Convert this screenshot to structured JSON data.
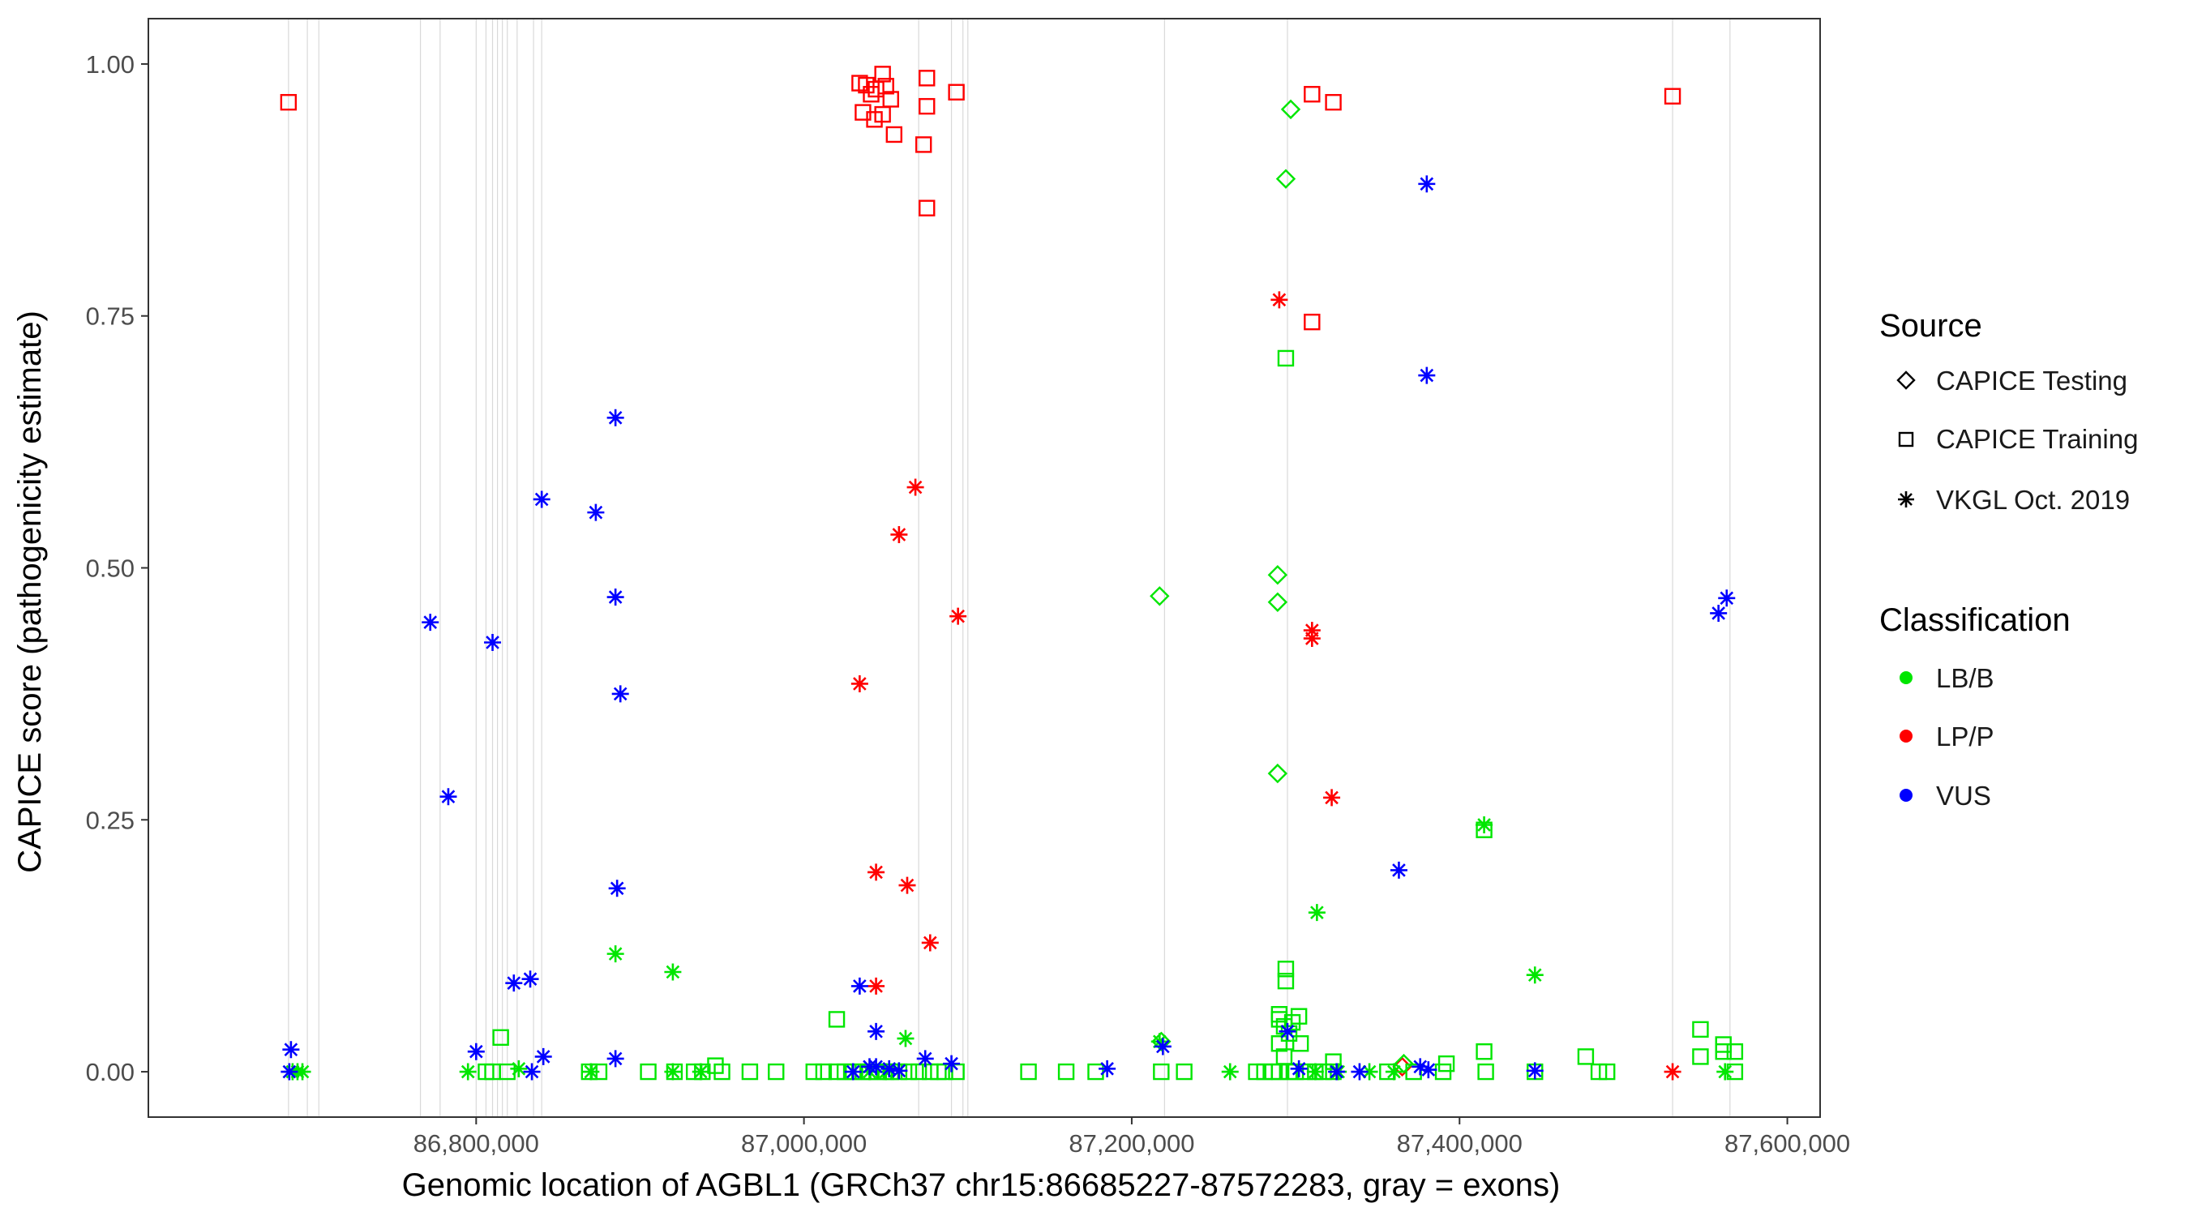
{
  "chart_data": {
    "type": "scatter",
    "title": "",
    "xlabel": "Genomic location of AGBL1 (GRCh37 chr15:86685227-87572283, gray = exons)",
    "ylabel": "CAPICE score (pathogenicity estimate)",
    "xlim": [
      86600000,
      87620000
    ],
    "ylim": [
      -0.045,
      1.045
    ],
    "x_ticks": [
      86800000,
      87000000,
      87200000,
      87400000,
      87600000
    ],
    "x_tick_labels": [
      "86,800,000",
      "87,000,000",
      "87,200,000",
      "87,400,000",
      "87,600,000"
    ],
    "y_ticks": [
      0,
      0.25,
      0.5,
      0.75,
      1.0
    ],
    "y_tick_labels": [
      "0.00",
      "0.25",
      "0.50",
      "0.75",
      "1.00"
    ],
    "exon_positions": [
      86685500,
      86697000,
      86704000,
      86766000,
      86778000,
      86800000,
      86806000,
      86810000,
      86813000,
      86816000,
      86819000,
      86825000,
      86835000,
      86840000,
      87070000,
      87090000,
      87097000,
      87100000,
      87220000,
      87295000,
      87530000,
      87565000
    ],
    "legend": {
      "source_title": "Source",
      "sources": [
        {
          "label": "CAPICE Testing",
          "shape": "diamond"
        },
        {
          "label": "CAPICE Training",
          "shape": "square"
        },
        {
          "label": "VKGL Oct. 2019",
          "shape": "asterisk"
        }
      ],
      "class_title": "Classification",
      "classes": [
        {
          "label": "LB/B",
          "color": "#00e600"
        },
        {
          "label": "LP/P",
          "color": "#ff0000"
        },
        {
          "label": "VUS",
          "color": "#0000ff"
        }
      ]
    },
    "series": [
      {
        "name": "LP/P CAPICE Training",
        "cls": "LP/P",
        "shape": "square",
        "points": [
          [
            86685500,
            0.962
          ],
          [
            87034000,
            0.981
          ],
          [
            87038000,
            0.979
          ],
          [
            87041000,
            0.97
          ],
          [
            87044000,
            0.975
          ],
          [
            87048000,
            0.99
          ],
          [
            87050000,
            0.978
          ],
          [
            87053000,
            0.965
          ],
          [
            87036000,
            0.952
          ],
          [
            87043000,
            0.945
          ],
          [
            87048000,
            0.95
          ],
          [
            87055000,
            0.93
          ],
          [
            87075000,
            0.986
          ],
          [
            87075000,
            0.958
          ],
          [
            87073000,
            0.92
          ],
          [
            87075000,
            0.857
          ],
          [
            87093000,
            0.972
          ],
          [
            87310000,
            0.97
          ],
          [
            87323000,
            0.962
          ],
          [
            87310000,
            0.744
          ],
          [
            87530000,
            0.968
          ]
        ]
      },
      {
        "name": "LP/P VKGL Oct. 2019",
        "cls": "LP/P",
        "shape": "asterisk",
        "points": [
          [
            87290000,
            0.766
          ],
          [
            87068000,
            0.58
          ],
          [
            87058000,
            0.533
          ],
          [
            87094000,
            0.452
          ],
          [
            87310000,
            0.438
          ],
          [
            87310000,
            0.43
          ],
          [
            87034000,
            0.385
          ],
          [
            87322000,
            0.272
          ],
          [
            87044000,
            0.198
          ],
          [
            87063000,
            0.185
          ],
          [
            87077000,
            0.128
          ],
          [
            87044000,
            0.085
          ],
          [
            87530000,
            0.0
          ]
        ]
      },
      {
        "name": "LP/P CAPICE Testing",
        "cls": "LP/P",
        "shape": "diamond",
        "points": [
          [
            87365000,
            0.005
          ]
        ]
      },
      {
        "name": "LB/B CAPICE Testing",
        "cls": "LB/B",
        "shape": "diamond",
        "points": [
          [
            87297000,
            0.955
          ],
          [
            87294000,
            0.886
          ],
          [
            87217000,
            0.472
          ],
          [
            87289000,
            0.493
          ],
          [
            87289000,
            0.466
          ],
          [
            87289000,
            0.296
          ],
          [
            87218000,
            0.03
          ],
          [
            87366000,
            0.008
          ]
        ]
      },
      {
        "name": "LB/B CAPICE Training",
        "cls": "LB/B",
        "shape": "square",
        "points": [
          [
            87294000,
            0.708
          ],
          [
            87415000,
            0.24
          ],
          [
            87294000,
            0.102
          ],
          [
            87294000,
            0.09
          ],
          [
            87290000,
            0.057
          ],
          [
            87290000,
            0.052
          ],
          [
            87293000,
            0.045
          ],
          [
            87298000,
            0.049
          ],
          [
            87302000,
            0.055
          ],
          [
            87296000,
            0.038
          ],
          [
            87290000,
            0.028
          ],
          [
            87303000,
            0.028
          ],
          [
            87293000,
            0.015
          ],
          [
            87415000,
            0.02
          ],
          [
            87477000,
            0.015
          ],
          [
            87020000,
            0.052
          ],
          [
            86815000,
            0.034
          ],
          [
            87547000,
            0.042
          ],
          [
            87561000,
            0.027
          ],
          [
            87561000,
            0.02
          ],
          [
            87568000,
            0.02
          ],
          [
            87547000,
            0.015
          ],
          [
            87392000,
            0.008
          ],
          [
            87323000,
            0.01
          ],
          [
            86946000,
            0.006
          ],
          [
            86869000,
            0.0
          ],
          [
            86875000,
            0.0
          ],
          [
            86905000,
            0.0
          ],
          [
            86921000,
            0.0
          ],
          [
            86933000,
            0.0
          ],
          [
            86938000,
            0.0
          ],
          [
            86950000,
            0.0
          ],
          [
            86967000,
            0.0
          ],
          [
            86983000,
            0.0
          ],
          [
            87006000,
            0.0
          ],
          [
            87012000,
            0.0
          ],
          [
            87020000,
            0.0
          ],
          [
            87025000,
            0.0
          ],
          [
            87030000,
            0.0
          ],
          [
            87036000,
            0.0
          ],
          [
            87040000,
            0.0
          ],
          [
            87045000,
            0.0
          ],
          [
            87050000,
            0.0
          ],
          [
            87053000,
            0.0
          ],
          [
            87058000,
            0.0
          ],
          [
            87064000,
            0.0
          ],
          [
            87070000,
            0.0
          ],
          [
            87077000,
            0.0
          ],
          [
            87082000,
            0.0
          ],
          [
            87086000,
            0.0
          ],
          [
            87093000,
            0.0
          ],
          [
            87137000,
            0.0
          ],
          [
            87160000,
            0.0
          ],
          [
            87178000,
            0.0
          ],
          [
            87218000,
            0.0
          ],
          [
            87232000,
            0.0
          ],
          [
            87276000,
            0.0
          ],
          [
            87281000,
            0.0
          ],
          [
            87286000,
            0.0
          ],
          [
            87290000,
            0.0
          ],
          [
            87296000,
            0.0
          ],
          [
            87300000,
            0.0
          ],
          [
            87306000,
            0.0
          ],
          [
            87312000,
            0.0
          ],
          [
            87317000,
            0.0
          ],
          [
            87323000,
            0.0
          ],
          [
            87356000,
            0.0
          ],
          [
            87372000,
            0.0
          ],
          [
            87390000,
            0.0
          ],
          [
            87416000,
            0.0
          ],
          [
            87446000,
            0.0
          ],
          [
            87485000,
            0.0
          ],
          [
            87490000,
            0.0
          ],
          [
            87568000,
            0.0
          ],
          [
            86806000,
            0.0
          ],
          [
            86810000,
            0.0
          ],
          [
            86819000,
            0.0
          ]
        ]
      },
      {
        "name": "LB/B VKGL Oct. 2019",
        "cls": "LB/B",
        "shape": "asterisk",
        "points": [
          [
            87415000,
            0.245
          ],
          [
            87313000,
            0.158
          ],
          [
            86885000,
            0.117
          ],
          [
            86920000,
            0.099
          ],
          [
            87446000,
            0.096
          ],
          [
            87062000,
            0.033
          ],
          [
            87217000,
            0.03
          ],
          [
            86688000,
            0.0
          ],
          [
            86691000,
            0.0
          ],
          [
            86694000,
            0.0
          ],
          [
            86795000,
            0.0
          ],
          [
            86826000,
            0.003
          ],
          [
            86870000,
            0.0
          ],
          [
            86920000,
            0.0
          ],
          [
            86937000,
            0.0
          ],
          [
            87040000,
            0.0
          ],
          [
            87050000,
            0.0
          ],
          [
            87260000,
            0.0
          ],
          [
            87312000,
            0.0
          ],
          [
            87326000,
            0.0
          ],
          [
            87345000,
            0.0
          ],
          [
            87360000,
            0.0
          ],
          [
            87562000,
            0.0
          ]
        ]
      },
      {
        "name": "VUS VKGL Oct. 2019",
        "cls": "VUS",
        "shape": "asterisk",
        "points": [
          [
            87380000,
            0.881
          ],
          [
            87380000,
            0.691
          ],
          [
            86885000,
            0.649
          ],
          [
            86840000,
            0.568
          ],
          [
            86873000,
            0.555
          ],
          [
            86885000,
            0.471
          ],
          [
            87563000,
            0.47
          ],
          [
            87558000,
            0.455
          ],
          [
            86772000,
            0.446
          ],
          [
            86810000,
            0.426
          ],
          [
            86888000,
            0.375
          ],
          [
            86783000,
            0.273
          ],
          [
            87363000,
            0.2
          ],
          [
            86886000,
            0.182
          ],
          [
            86833000,
            0.092
          ],
          [
            86823000,
            0.088
          ],
          [
            87034000,
            0.085
          ],
          [
            87044000,
            0.04
          ],
          [
            87295000,
            0.04
          ],
          [
            86687000,
            0.022
          ],
          [
            86800000,
            0.02
          ],
          [
            87219000,
            0.025
          ],
          [
            86841000,
            0.015
          ],
          [
            86885000,
            0.013
          ],
          [
            87074000,
            0.013
          ],
          [
            87090000,
            0.008
          ],
          [
            87040000,
            0.005
          ],
          [
            87044000,
            0.005
          ],
          [
            87052000,
            0.003
          ],
          [
            87058000,
            0.001
          ],
          [
            87030000,
            0.0
          ],
          [
            86686000,
            0.0
          ],
          [
            86834000,
            0.0
          ],
          [
            87185000,
            0.003
          ],
          [
            87302000,
            0.003
          ],
          [
            87325000,
            0.0
          ],
          [
            87339000,
            0.0
          ],
          [
            87376000,
            0.005
          ],
          [
            87381000,
            0.002
          ],
          [
            87446000,
            0.001
          ]
        ]
      }
    ]
  }
}
